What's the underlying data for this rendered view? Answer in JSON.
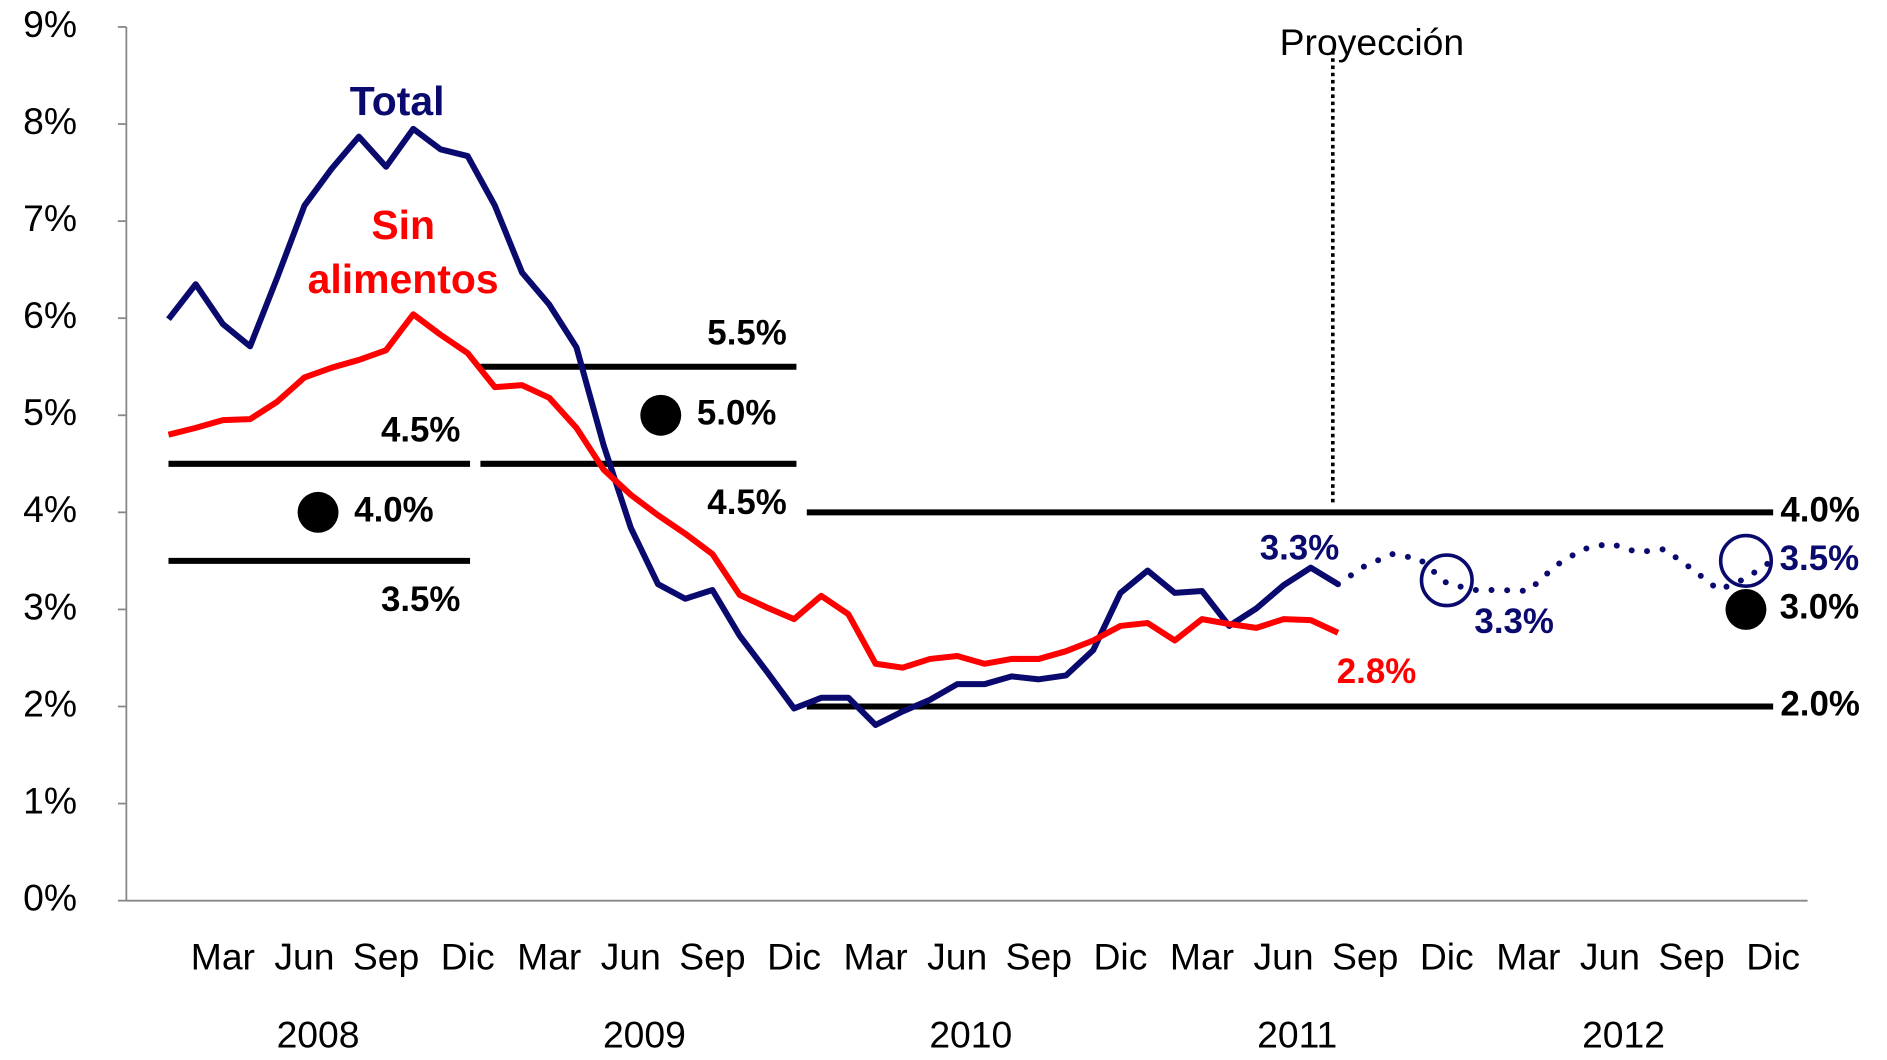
{
  "chart_data": {
    "type": "line",
    "categories": [
      null,
      null,
      "Mar",
      null,
      null,
      "Jun",
      null,
      null,
      "Sep",
      null,
      null,
      "Dic",
      null,
      null,
      "Mar",
      null,
      null,
      "Jun",
      null,
      null,
      "Sep",
      null,
      null,
      "Dic",
      null,
      null,
      "Mar",
      null,
      null,
      "Jun",
      null,
      null,
      "Sep",
      null,
      null,
      "Dic",
      null,
      null,
      "Mar",
      null,
      null,
      "Jun",
      null,
      null,
      "Sep",
      null,
      null,
      "Dic",
      null,
      null,
      "Mar",
      null,
      null,
      "Jun",
      null,
      null,
      "Sep",
      null,
      null,
      "Dic"
    ],
    "years": [
      "2008",
      "2009",
      "2010",
      "2011",
      "2012"
    ],
    "ylim": [
      0,
      9
    ],
    "yticks": [
      {
        "value": 0,
        "label": "0%"
      },
      {
        "value": 1,
        "label": "1%"
      },
      {
        "value": 2,
        "label": "2%"
      },
      {
        "value": 3,
        "label": "3%"
      },
      {
        "value": 4,
        "label": "4%"
      },
      {
        "value": 5,
        "label": "5%"
      },
      {
        "value": 6,
        "label": "6%"
      },
      {
        "value": 7,
        "label": "7%"
      },
      {
        "value": 8,
        "label": "8%"
      },
      {
        "value": 9,
        "label": "9%"
      }
    ],
    "series": [
      {
        "name": "Total",
        "color": "#0a0a6e",
        "values": [
          5.99,
          6.35,
          5.94,
          5.71,
          6.42,
          7.16,
          7.54,
          7.87,
          7.56,
          7.95,
          7.74,
          7.67,
          7.16,
          6.47,
          6.14,
          5.7,
          4.69,
          3.84,
          3.26,
          3.11,
          3.2,
          2.73,
          2.36,
          1.98,
          2.09,
          2.09,
          1.81,
          1.95,
          2.07,
          2.23,
          2.23,
          2.31,
          2.28,
          2.32,
          2.58,
          3.17,
          3.4,
          3.17,
          3.19,
          2.83,
          3.01,
          3.25,
          3.43,
          3.26,
          null,
          null,
          null,
          null,
          null,
          null,
          null,
          null,
          null,
          null,
          null,
          null,
          null,
          null,
          null,
          null
        ],
        "end_label": "3.3%"
      },
      {
        "name": "Sin alimentos",
        "color": "#ff0000",
        "values": [
          4.8,
          4.87,
          4.95,
          4.96,
          5.14,
          5.39,
          5.49,
          5.57,
          5.67,
          6.04,
          5.83,
          5.64,
          5.29,
          5.31,
          5.18,
          4.87,
          4.44,
          4.18,
          3.97,
          3.78,
          3.57,
          3.15,
          3.02,
          2.9,
          3.14,
          2.95,
          2.44,
          2.4,
          2.49,
          2.52,
          2.44,
          2.49,
          2.49,
          2.57,
          2.68,
          2.83,
          2.86,
          2.68,
          2.9,
          2.85,
          2.81,
          2.9,
          2.89,
          2.76,
          null,
          null,
          null,
          null,
          null,
          null,
          null,
          null,
          null,
          null,
          null,
          null,
          null,
          null,
          null,
          null
        ],
        "end_label": "2.8%"
      },
      {
        "color": "#0a0a6e",
        "style": "dotted",
        "values": [
          null,
          null,
          null,
          null,
          null,
          null,
          null,
          null,
          null,
          null,
          null,
          null,
          null,
          null,
          null,
          null,
          null,
          null,
          null,
          null,
          null,
          null,
          null,
          null,
          null,
          null,
          null,
          null,
          null,
          null,
          null,
          null,
          null,
          null,
          null,
          null,
          null,
          null,
          null,
          null,
          null,
          null,
          null,
          3.26,
          3.45,
          3.57,
          3.52,
          3.27,
          3.2,
          3.2,
          3.19,
          3.45,
          3.62,
          3.68,
          3.59,
          3.62,
          3.42,
          3.2,
          3.32,
          3.51
        ]
      }
    ],
    "projection_label": "Proyección",
    "projection_start": 43,
    "targets": [
      {
        "low": 3.5,
        "mid": 4.0,
        "high": 4.5,
        "low_label": "3.5%",
        "mid_label": "4.0%",
        "high_label": "4.5%"
      },
      {
        "low": 4.5,
        "mid": 5.0,
        "high": 5.5,
        "low_label": "4.5%",
        "mid_label": "5.0%",
        "high_label": "5.5%"
      },
      {
        "low": 2.0,
        "high": 4.0,
        "low_label": "2.0%",
        "high_label": "4.0%"
      }
    ],
    "markers": [
      {
        "x": 58,
        "value": 3.0,
        "label": "3.0%",
        "style": "filled"
      },
      {
        "x": 47,
        "value": 3.3,
        "label": "3.3%",
        "style": "hollow"
      },
      {
        "x": 58,
        "value": 3.5,
        "label": "3.5%",
        "style": "hollow"
      }
    ]
  }
}
